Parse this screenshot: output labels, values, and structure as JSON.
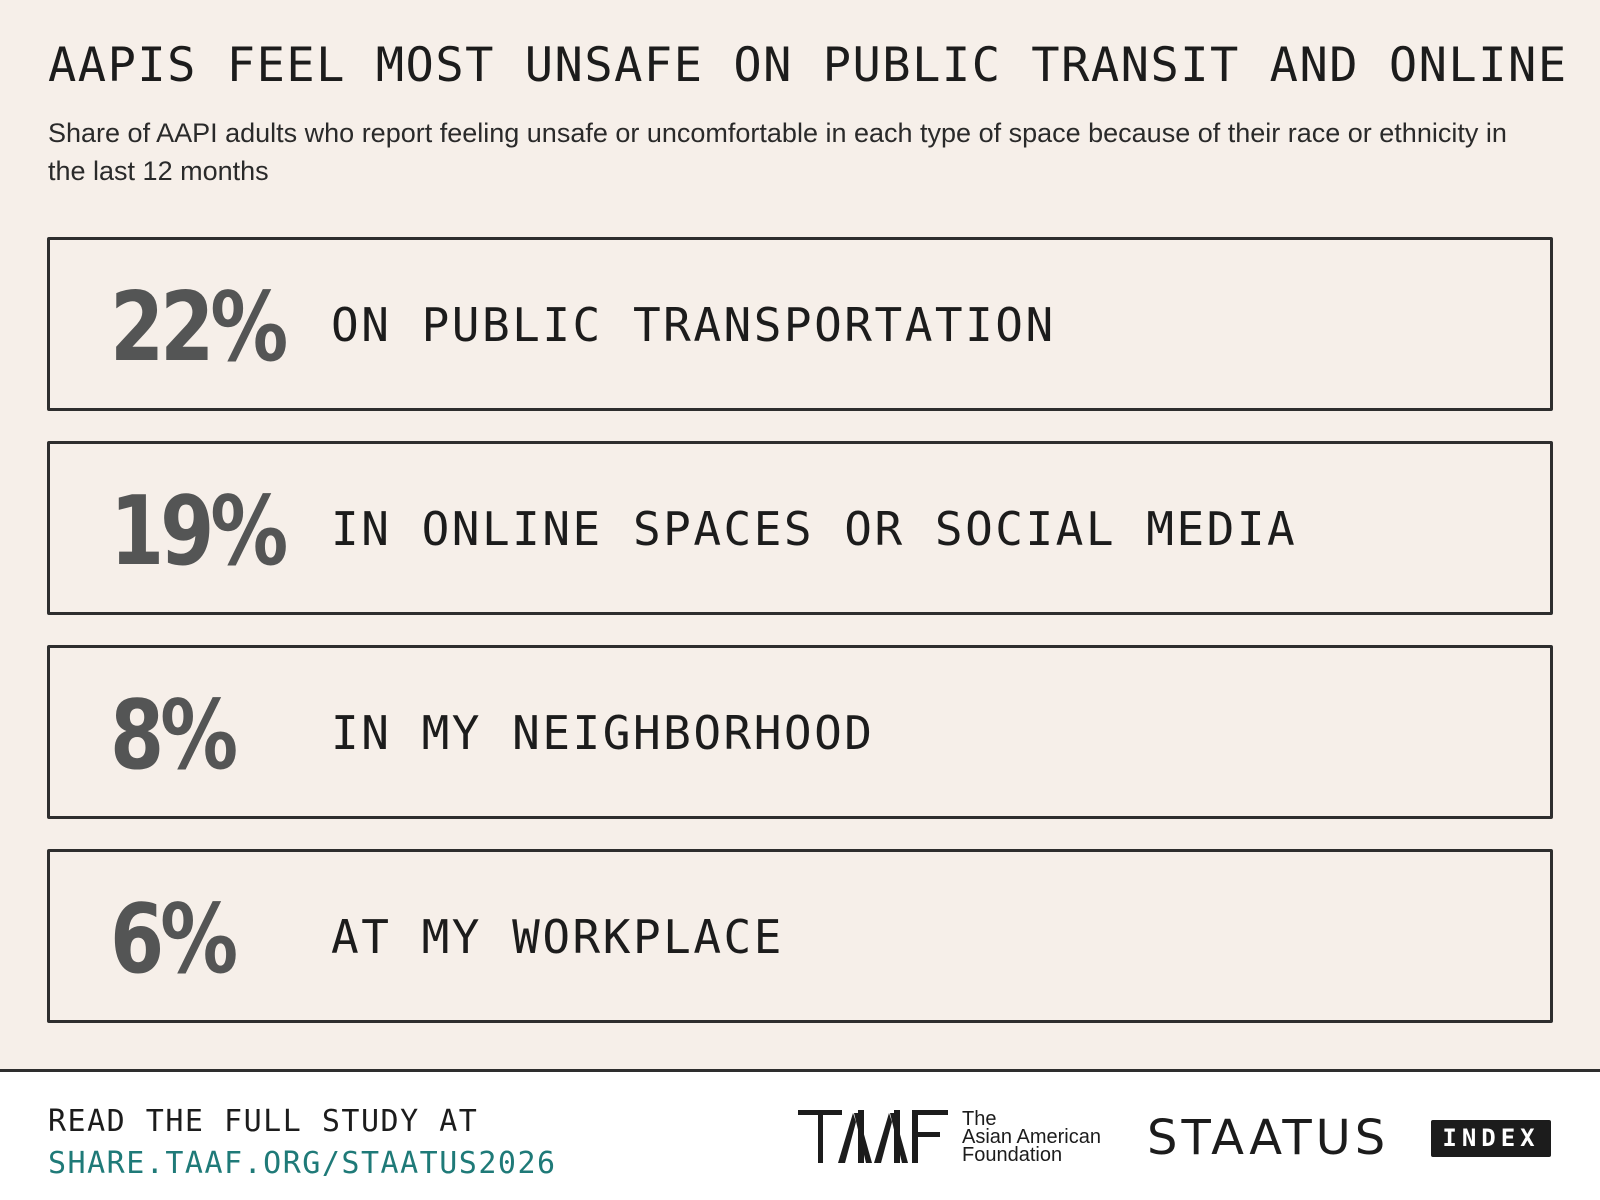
{
  "header": {
    "title": "AAPIS FEEL MOST UNSAFE ON PUBLIC TRANSIT AND ONLINE",
    "subtitle": "Share of AAPI adults who report feeling unsafe or uncomfortable in each type of space because of their race or ethnicity in the last 12 months"
  },
  "stats": [
    {
      "value": "22%",
      "label": "ON PUBLIC TRANSPORTATION"
    },
    {
      "value": "19%",
      "label": "IN ONLINE SPACES OR SOCIAL MEDIA"
    },
    {
      "value": "8%",
      "label": "IN MY NEIGHBORHOOD"
    },
    {
      "value": "6%",
      "label": "AT MY WORKPLACE"
    }
  ],
  "footer": {
    "cta_line1": "READ THE FULL STUDY AT",
    "cta_link": "SHARE.TAAF.ORG/STAATUS2026",
    "taaf_name_lines": [
      "The",
      "Asian American",
      "Foundation"
    ],
    "staatus_wordmark": "STAATUS",
    "index_badge": "INDEX"
  },
  "colors": {
    "background": "#f6efe9",
    "footer_background": "#ffffff",
    "text": "#1c1c1c",
    "stat_value": "#545555",
    "card_border": "#2e2e2e",
    "link": "#1f7a78"
  },
  "icons": {
    "taaf_logo": "taaf-logo-icon"
  }
}
